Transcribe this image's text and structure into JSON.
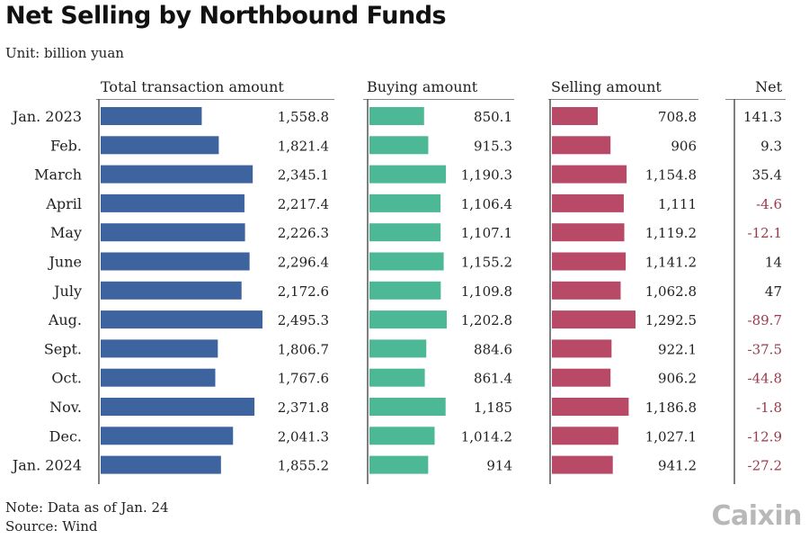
{
  "colors": {
    "total": "#3e64a0",
    "buying": "#4db896",
    "selling": "#b84a68",
    "net_positive": "#222222",
    "net_negative": "#9a3a4a",
    "divider": "#555555",
    "header_rule": "#888888"
  },
  "chart_data": {
    "type": "bar",
    "title": "Net Selling by Northbound Funds",
    "unit": "Unit: billion yuan",
    "categories": [
      "Jan. 2023",
      "Feb.",
      "March",
      "April",
      "May",
      "June",
      "July",
      "Aug.",
      "Sept.",
      "Oct.",
      "Nov.",
      "Dec.",
      "Jan. 2024"
    ],
    "series": [
      {
        "name": "Total transaction amount",
        "values": [
          1558.8,
          1821.4,
          2345.1,
          2217.4,
          2226.3,
          2296.4,
          2172.6,
          2495.3,
          1806.7,
          1767.6,
          2371.8,
          2041.3,
          1855.2
        ],
        "labels": [
          "1,558.8",
          "1,821.4",
          "2,345.1",
          "2,217.4",
          "2,226.3",
          "2,296.4",
          "2,172.6",
          "2,495.3",
          "1,806.7",
          "1,767.6",
          "2,371.8",
          "2,041.3",
          "1,855.2"
        ]
      },
      {
        "name": "Buying amount",
        "values": [
          850.1,
          915.3,
          1190.3,
          1106.4,
          1107.1,
          1155.2,
          1109.8,
          1202.8,
          884.6,
          861.4,
          1185,
          1014.2,
          914
        ],
        "labels": [
          "850.1",
          "915.3",
          "1,190.3",
          "1,106.4",
          "1,107.1",
          "1,155.2",
          "1,109.8",
          "1,202.8",
          "884.6",
          "861.4",
          "1,185",
          "1,014.2",
          "914"
        ]
      },
      {
        "name": "Selling amount",
        "values": [
          708.8,
          906,
          1154.8,
          1111,
          1119.2,
          1141.2,
          1062.8,
          1292.5,
          922.1,
          906.2,
          1186.8,
          1027.1,
          941.2
        ],
        "labels": [
          "708.8",
          "906",
          "1,154.8",
          "1,111",
          "1,119.2",
          "1,141.2",
          "1,062.8",
          "1,292.5",
          "922.1",
          "906.2",
          "1,186.8",
          "1,027.1",
          "941.2"
        ]
      },
      {
        "name": "Net",
        "values": [
          141.3,
          9.3,
          35.4,
          -4.6,
          -12.1,
          14,
          47,
          -89.7,
          -37.5,
          -44.8,
          -1.8,
          -12.9,
          -27.2
        ],
        "labels": [
          "141.3",
          "9.3",
          "35.4",
          "-4.6",
          "-12.1",
          "14",
          "47",
          "-89.7",
          "-37.5",
          "-44.8",
          "-1.8",
          "-12.9",
          "-27.2"
        ]
      }
    ],
    "note": "Note: Data as of Jan. 24",
    "source": "Source: Wind",
    "brand": "Caixin"
  }
}
